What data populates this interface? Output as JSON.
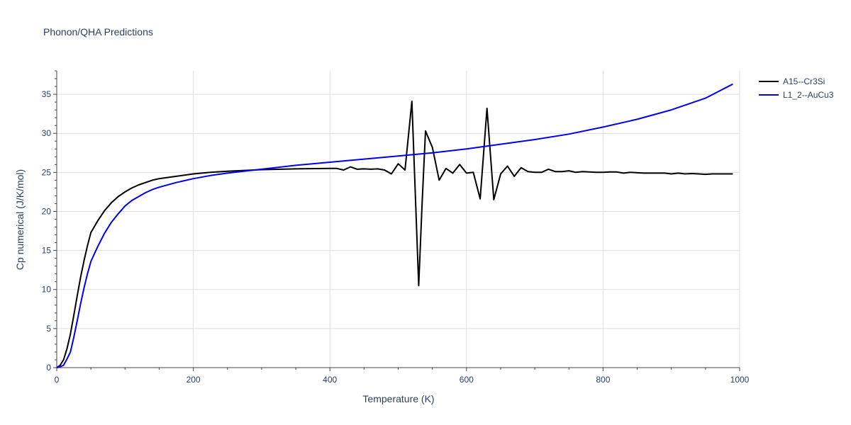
{
  "chart_data": {
    "type": "line",
    "title": "Phonon/QHA Predictions",
    "xlabel": "Temperature (K)",
    "ylabel": "Cp numerical (J/K/mol)",
    "xlim": [
      0,
      1000
    ],
    "ylim": [
      0,
      38
    ],
    "x_ticks": [
      0,
      200,
      400,
      600,
      800,
      1000
    ],
    "y_ticks": [
      0,
      5,
      10,
      15,
      20,
      25,
      30,
      35
    ],
    "grid": true,
    "legend_position": "top-right",
    "series": [
      {
        "name": "A15--Cr3Si",
        "color": "#000000",
        "points": [
          [
            0,
            0
          ],
          [
            5,
            0.3
          ],
          [
            10,
            1.0
          ],
          [
            15,
            2.4
          ],
          [
            20,
            4.3
          ],
          [
            25,
            6.7
          ],
          [
            30,
            9.2
          ],
          [
            35,
            11.6
          ],
          [
            40,
            13.7
          ],
          [
            45,
            15.6
          ],
          [
            50,
            17.3
          ],
          [
            60,
            18.8
          ],
          [
            70,
            20.1
          ],
          [
            80,
            21.1
          ],
          [
            90,
            21.9
          ],
          [
            100,
            22.5
          ],
          [
            110,
            23.0
          ],
          [
            120,
            23.4
          ],
          [
            130,
            23.7
          ],
          [
            140,
            24.0
          ],
          [
            150,
            24.2
          ],
          [
            175,
            24.5
          ],
          [
            200,
            24.8
          ],
          [
            225,
            25.0
          ],
          [
            250,
            25.15
          ],
          [
            300,
            25.35
          ],
          [
            350,
            25.45
          ],
          [
            400,
            25.5
          ],
          [
            410,
            25.5
          ],
          [
            420,
            25.3
          ],
          [
            430,
            25.7
          ],
          [
            440,
            25.4
          ],
          [
            450,
            25.45
          ],
          [
            460,
            25.4
          ],
          [
            470,
            25.45
          ],
          [
            480,
            25.3
          ],
          [
            490,
            24.8
          ],
          [
            500,
            26.1
          ],
          [
            510,
            25.3
          ],
          [
            520,
            34.1
          ],
          [
            530,
            10.5
          ],
          [
            535,
            21.0
          ],
          [
            540,
            30.3
          ],
          [
            550,
            28.2
          ],
          [
            560,
            24.0
          ],
          [
            570,
            25.5
          ],
          [
            580,
            24.9
          ],
          [
            590,
            26.0
          ],
          [
            600,
            24.9
          ],
          [
            610,
            25.0
          ],
          [
            620,
            21.6
          ],
          [
            630,
            33.2
          ],
          [
            640,
            21.5
          ],
          [
            650,
            24.8
          ],
          [
            660,
            25.8
          ],
          [
            670,
            24.5
          ],
          [
            680,
            25.6
          ],
          [
            690,
            25.1
          ],
          [
            700,
            25.0
          ],
          [
            710,
            25.0
          ],
          [
            720,
            25.4
          ],
          [
            730,
            25.1
          ],
          [
            740,
            25.1
          ],
          [
            750,
            25.2
          ],
          [
            760,
            25.0
          ],
          [
            770,
            25.1
          ],
          [
            780,
            25.05
          ],
          [
            790,
            25.0
          ],
          [
            800,
            25.0
          ],
          [
            810,
            25.05
          ],
          [
            820,
            25.05
          ],
          [
            830,
            24.9
          ],
          [
            840,
            25.0
          ],
          [
            850,
            24.95
          ],
          [
            860,
            24.9
          ],
          [
            870,
            24.9
          ],
          [
            880,
            24.9
          ],
          [
            890,
            24.9
          ],
          [
            900,
            24.8
          ],
          [
            910,
            24.9
          ],
          [
            920,
            24.8
          ],
          [
            930,
            24.85
          ],
          [
            940,
            24.8
          ],
          [
            950,
            24.75
          ],
          [
            960,
            24.8
          ],
          [
            970,
            24.8
          ],
          [
            980,
            24.8
          ],
          [
            990,
            24.8
          ]
        ]
      },
      {
        "name": "L1_2--AuCu3",
        "color": "#0000ee",
        "points": [
          [
            0,
            0
          ],
          [
            5,
            0.1
          ],
          [
            10,
            0.3
          ],
          [
            15,
            1.1
          ],
          [
            20,
            2.0
          ],
          [
            25,
            3.9
          ],
          [
            30,
            6.0
          ],
          [
            35,
            8.2
          ],
          [
            40,
            10.2
          ],
          [
            45,
            12.0
          ],
          [
            50,
            13.6
          ],
          [
            60,
            15.5
          ],
          [
            70,
            17.2
          ],
          [
            80,
            18.6
          ],
          [
            90,
            19.7
          ],
          [
            100,
            20.7
          ],
          [
            110,
            21.4
          ],
          [
            120,
            21.9
          ],
          [
            130,
            22.4
          ],
          [
            140,
            22.8
          ],
          [
            150,
            23.1
          ],
          [
            175,
            23.7
          ],
          [
            200,
            24.2
          ],
          [
            225,
            24.6
          ],
          [
            250,
            24.9
          ],
          [
            300,
            25.4
          ],
          [
            350,
            25.9
          ],
          [
            400,
            26.3
          ],
          [
            450,
            26.7
          ],
          [
            500,
            27.1
          ],
          [
            550,
            27.5
          ],
          [
            600,
            28.0
          ],
          [
            650,
            28.6
          ],
          [
            700,
            29.2
          ],
          [
            750,
            29.9
          ],
          [
            800,
            30.8
          ],
          [
            850,
            31.8
          ],
          [
            900,
            33.0
          ],
          [
            950,
            34.5
          ],
          [
            990,
            36.3
          ]
        ]
      }
    ]
  }
}
